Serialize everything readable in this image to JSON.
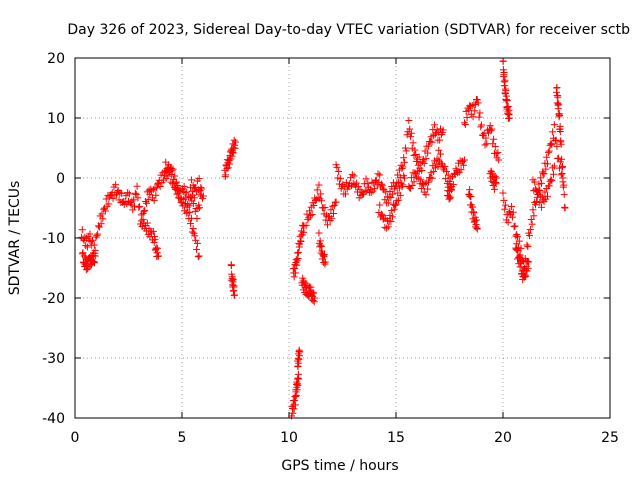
{
  "chart_data": {
    "type": "scatter",
    "title": "Day 326 of 2023, Sidereal Day-to-day VTEC variation (SDTVAR) for receiver sctb",
    "xlabel": "GPS time / hours",
    "ylabel": "SDTVAR / TECUs",
    "xlim": [
      0,
      25
    ],
    "ylim": [
      -40,
      20
    ],
    "xticks": [
      0,
      5,
      10,
      15,
      20,
      25
    ],
    "yticks": [
      -40,
      -30,
      -20,
      -10,
      0,
      10,
      20
    ],
    "grid": true,
    "marker": "plus",
    "color": "#ff0000",
    "series": [
      {
        "name": "SDTVAR",
        "segments": [
          {
            "x": [
              0.3,
              0.5,
              0.7,
              0.9,
              1.1,
              1.3,
              1.5,
              1.7,
              1.9,
              2.1,
              2.3,
              2.5,
              2.7,
              2.9,
              3.1,
              3.3,
              3.5,
              3.7,
              3.9,
              4.1,
              4.3,
              4.5,
              4.7,
              4.9,
              5.1,
              5.3,
              5.5,
              5.7,
              5.9
            ],
            "y": [
              -9,
              -11,
              -10,
              -12,
              -8,
              -6,
              -4,
              -3,
              -2,
              -3,
              -4,
              -3,
              -5,
              -2,
              -8,
              -4,
              -2,
              -3,
              -1,
              0,
              1,
              2,
              -1,
              -3,
              -2,
              -4,
              -3,
              -6,
              -3
            ]
          },
          {
            "x": [
              0.35,
              0.45,
              0.55,
              0.65,
              0.75,
              0.85,
              0.95
            ],
            "y": [
              -13,
              -14,
              -14.5,
              -14,
              -13.5,
              -14,
              -13
            ]
          },
          {
            "x": [
              3.1,
              3.3,
              3.5,
              3.7,
              3.8,
              3.9
            ],
            "y": [
              -7,
              -8,
              -9,
              -10,
              -12,
              -13
            ]
          },
          {
            "x": [
              4.2,
              4.4,
              4.6,
              4.8,
              5.0,
              5.2,
              5.4,
              5.6,
              5.8
            ],
            "y": [
              2,
              1,
              -1,
              -2,
              -4,
              -5,
              -7,
              -10,
              -13
            ]
          },
          {
            "x": [
              5.4,
              5.6,
              5.8,
              6.0
            ],
            "y": [
              -1,
              -2,
              -1,
              -3
            ]
          },
          {
            "x": [
              7.0,
              7.1,
              7.2,
              7.3,
              7.4,
              7.5
            ],
            "y": [
              0.5,
              2,
              3,
              4,
              5,
              6
            ]
          },
          {
            "x": [
              7.3,
              7.35,
              7.4,
              7.45
            ],
            "y": [
              -15,
              -17,
              -18,
              -19.5
            ]
          },
          {
            "x": [
              10.1,
              10.2,
              10.3,
              10.35,
              10.4,
              10.45
            ],
            "y": [
              -39.5,
              -38,
              -37,
              -35,
              -34,
              -33.5
            ]
          },
          {
            "x": [
              10.4,
              10.45,
              10.5
            ],
            "y": [
              -31,
              -30,
              -29
            ]
          },
          {
            "x": [
              10.2,
              10.3,
              10.4,
              10.5,
              10.6,
              10.7
            ],
            "y": [
              -16,
              -15,
              -13,
              -11,
              -9,
              -8
            ]
          },
          {
            "x": [
              10.6,
              10.7,
              10.8,
              10.9,
              11.0,
              11.1,
              11.2
            ],
            "y": [
              -17,
              -18,
              -18.5,
              -19,
              -19,
              -19.5,
              -20
            ]
          },
          {
            "x": [
              10.8,
              11.0,
              11.2,
              11.4,
              11.6,
              11.8,
              12.0,
              12.2
            ],
            "y": [
              -7,
              -6,
              -4,
              -2,
              -5,
              -7,
              -6,
              -4
            ]
          },
          {
            "x": [
              11.4,
              11.5,
              11.6,
              11.7
            ],
            "y": [
              -10,
              -12,
              -13,
              -14
            ]
          },
          {
            "x": [
              12.2,
              12.4,
              12.6,
              12.8,
              13.0,
              13.2,
              13.4,
              13.6,
              13.8,
              14.0,
              14.2,
              14.4,
              14.6,
              14.8,
              15.0,
              15.2,
              15.4,
              15.6,
              15.8,
              16.0,
              16.2,
              16.4,
              16.6,
              16.8,
              17.0,
              17.2
            ],
            "y": [
              2,
              -1,
              -2,
              -1,
              0,
              -2,
              -3,
              -1,
              -2,
              -1,
              0,
              -2,
              -4,
              -2,
              -1,
              1,
              3,
              9,
              5,
              3,
              2,
              4,
              6,
              8,
              7,
              8
            ]
          },
          {
            "x": [
              14.2,
              14.4,
              14.6,
              14.8,
              15.0,
              15.2,
              15.4
            ],
            "y": [
              -5,
              -7,
              -8,
              -6,
              -4,
              -2,
              0
            ]
          },
          {
            "x": [
              15.6,
              15.8,
              16.0,
              16.2,
              16.4,
              16.6,
              16.8,
              17.0
            ],
            "y": [
              -2,
              0,
              1,
              -1,
              -2,
              0,
              2,
              3
            ]
          },
          {
            "x": [
              17.0,
              17.2,
              17.4,
              17.6,
              17.8,
              18.0,
              18.2
            ],
            "y": [
              4,
              2,
              0,
              -1,
              1,
              2,
              3
            ]
          },
          {
            "x": [
              17.4,
              17.5,
              17.6
            ],
            "y": [
              -2,
              -3,
              -2
            ]
          },
          {
            "x": [
              18.2,
              18.4,
              18.6,
              18.8,
              19.0,
              19.2,
              19.4,
              19.6,
              19.8
            ],
            "y": [
              9,
              12,
              11,
              13,
              8,
              6,
              9,
              5,
              3
            ]
          },
          {
            "x": [
              18.4,
              18.5,
              18.6,
              18.7,
              18.8
            ],
            "y": [
              -2,
              -4,
              -6,
              -7,
              -8.5
            ]
          },
          {
            "x": [
              19.4,
              19.5,
              19.6,
              19.7
            ],
            "y": [
              1,
              0,
              -1,
              0
            ]
          },
          {
            "x": [
              20.0,
              20.05,
              20.1,
              20.15,
              20.2,
              20.25,
              20.3
            ],
            "y": [
              19,
              17,
              15,
              13,
              12,
              11,
              10
            ]
          },
          {
            "x": [
              20.0,
              20.2,
              20.4,
              20.6,
              20.8,
              21.0,
              21.2,
              21.4,
              21.6,
              21.8,
              22.0,
              22.2,
              22.4,
              22.6,
              22.8
            ],
            "y": [
              -3,
              -7,
              -5,
              -9,
              -12,
              -15,
              -10,
              -6,
              -3,
              0,
              2,
              5,
              8,
              3,
              0
            ]
          },
          {
            "x": [
              20.6,
              20.7,
              20.8,
              20.9,
              21.0,
              21.1,
              21.2
            ],
            "y": [
              -11,
              -13,
              -14,
              -16,
              -16.5,
              -15,
              -14
            ]
          },
          {
            "x": [
              21.4,
              21.6,
              21.8,
              22.0,
              22.2,
              22.4
            ],
            "y": [
              -1,
              -2,
              -4,
              -3,
              -1,
              2
            ]
          },
          {
            "x": [
              22.5,
              22.55,
              22.6,
              22.65,
              22.7,
              22.8,
              22.9
            ],
            "y": [
              15,
              13,
              12,
              9,
              6,
              0,
              -5
            ]
          }
        ]
      }
    ]
  }
}
